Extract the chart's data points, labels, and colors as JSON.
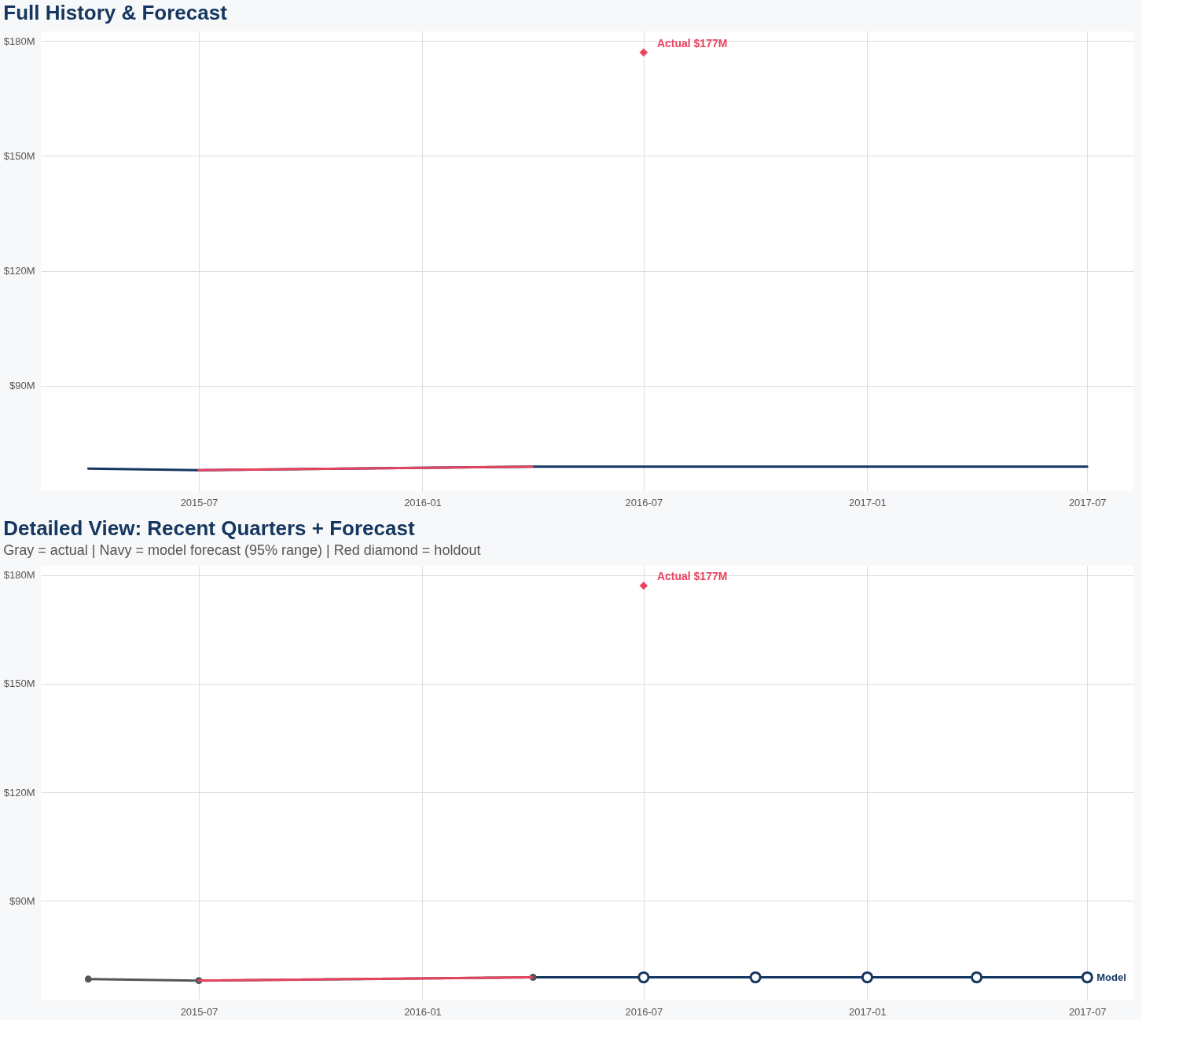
{
  "chart_data": [
    {
      "type": "line",
      "title": "Full History & Forecast",
      "xlim": [
        "2015-02-21",
        "2017-08-08"
      ],
      "xticks": [
        {
          "value": "2015-07",
          "label": "2015-07"
        },
        {
          "value": "2016-01",
          "label": "2016-01"
        },
        {
          "value": "2016-07",
          "label": "2016-07"
        },
        {
          "value": "2017-01",
          "label": "2017-01"
        },
        {
          "value": "2017-07",
          "label": "2017-07"
        }
      ],
      "ylim": [
        62.5,
        182.5
      ],
      "yticks": [
        {
          "value": 90,
          "label": "$90M"
        },
        {
          "value": 120,
          "label": "$120M"
        },
        {
          "value": 150,
          "label": "$150M"
        },
        {
          "value": 180,
          "label": "$180M"
        }
      ],
      "grid": true,
      "legend": false,
      "series": [
        {
          "type": "line",
          "color": "#14365f",
          "marker": "none",
          "line_style": "solid",
          "x": [
            "2015-04",
            "2015-07",
            "2016-04",
            "2016-07",
            "2016-10",
            "2017-01",
            "2017-04",
            "2017-07"
          ],
          "values": [
            68.4,
            68.0,
            68.9,
            68.9,
            68.9,
            68.9,
            68.9,
            68.9
          ]
        },
        {
          "type": "line",
          "color": "#e8435f",
          "marker": "none",
          "line_style": "dashed",
          "x": [
            "2015-07",
            "2016-04"
          ],
          "values": [
            68.0,
            68.9
          ]
        },
        {
          "type": "scatter",
          "color": "#e8435f",
          "marker": "diamond",
          "x": [
            "2016-07"
          ],
          "values": [
            177
          ]
        }
      ],
      "annotations": [
        {
          "text": "Actual $177M",
          "x": "2016-07",
          "y": 177
        }
      ]
    },
    {
      "type": "line",
      "title": "Detailed View: Recent Quarters + Forecast",
      "subtitle": "Gray = actual  |  Navy = model forecast (95% range)  |  Red diamond = holdout",
      "xlim": [
        "2015-02-21",
        "2017-08-08"
      ],
      "xticks": [
        {
          "value": "2015-07",
          "label": "2015-07"
        },
        {
          "value": "2016-01",
          "label": "2016-01"
        },
        {
          "value": "2016-07",
          "label": "2016-07"
        },
        {
          "value": "2017-01",
          "label": "2017-01"
        },
        {
          "value": "2017-07",
          "label": "2017-07"
        }
      ],
      "ylim": [
        62.5,
        182.5
      ],
      "yticks": [
        {
          "value": 90,
          "label": "$90M"
        },
        {
          "value": 120,
          "label": "$120M"
        },
        {
          "value": 150,
          "label": "$150M"
        },
        {
          "value": 180,
          "label": "$180M"
        }
      ],
      "grid": true,
      "legend": false,
      "series": [
        {
          "type": "line",
          "name": "Model",
          "color": "#14365f",
          "marker": "none",
          "line_style": "solid",
          "x": [
            "2016-04",
            "2016-07",
            "2016-10",
            "2017-01",
            "2017-04",
            "2017-07"
          ],
          "values": [
            68.9,
            68.9,
            68.9,
            68.9,
            68.9,
            68.9
          ]
        },
        {
          "type": "scatter",
          "color": "#14365f",
          "marker": "circle",
          "x": [
            "2016-07",
            "2016-10",
            "2017-01",
            "2017-04",
            "2017-07"
          ],
          "values": [
            68.9,
            68.9,
            68.9,
            68.9,
            68.9
          ]
        },
        {
          "type": "line",
          "color": "#555555",
          "marker": "circle",
          "line_style": "solid",
          "x": [
            "2015-04",
            "2015-07",
            "2016-04"
          ],
          "values": [
            68.4,
            68.0,
            68.9
          ]
        },
        {
          "type": "line",
          "color": "#e8435f",
          "marker": "none",
          "line_style": "dashed",
          "x": [
            "2015-07",
            "2016-04"
          ],
          "values": [
            68.0,
            68.9
          ]
        },
        {
          "type": "scatter",
          "color": "#e8435f",
          "marker": "diamond",
          "x": [
            "2016-07"
          ],
          "values": [
            177
          ]
        }
      ],
      "annotations": [
        {
          "text": "Actual $177M",
          "x": "2016-07",
          "y": 177
        }
      ]
    }
  ]
}
